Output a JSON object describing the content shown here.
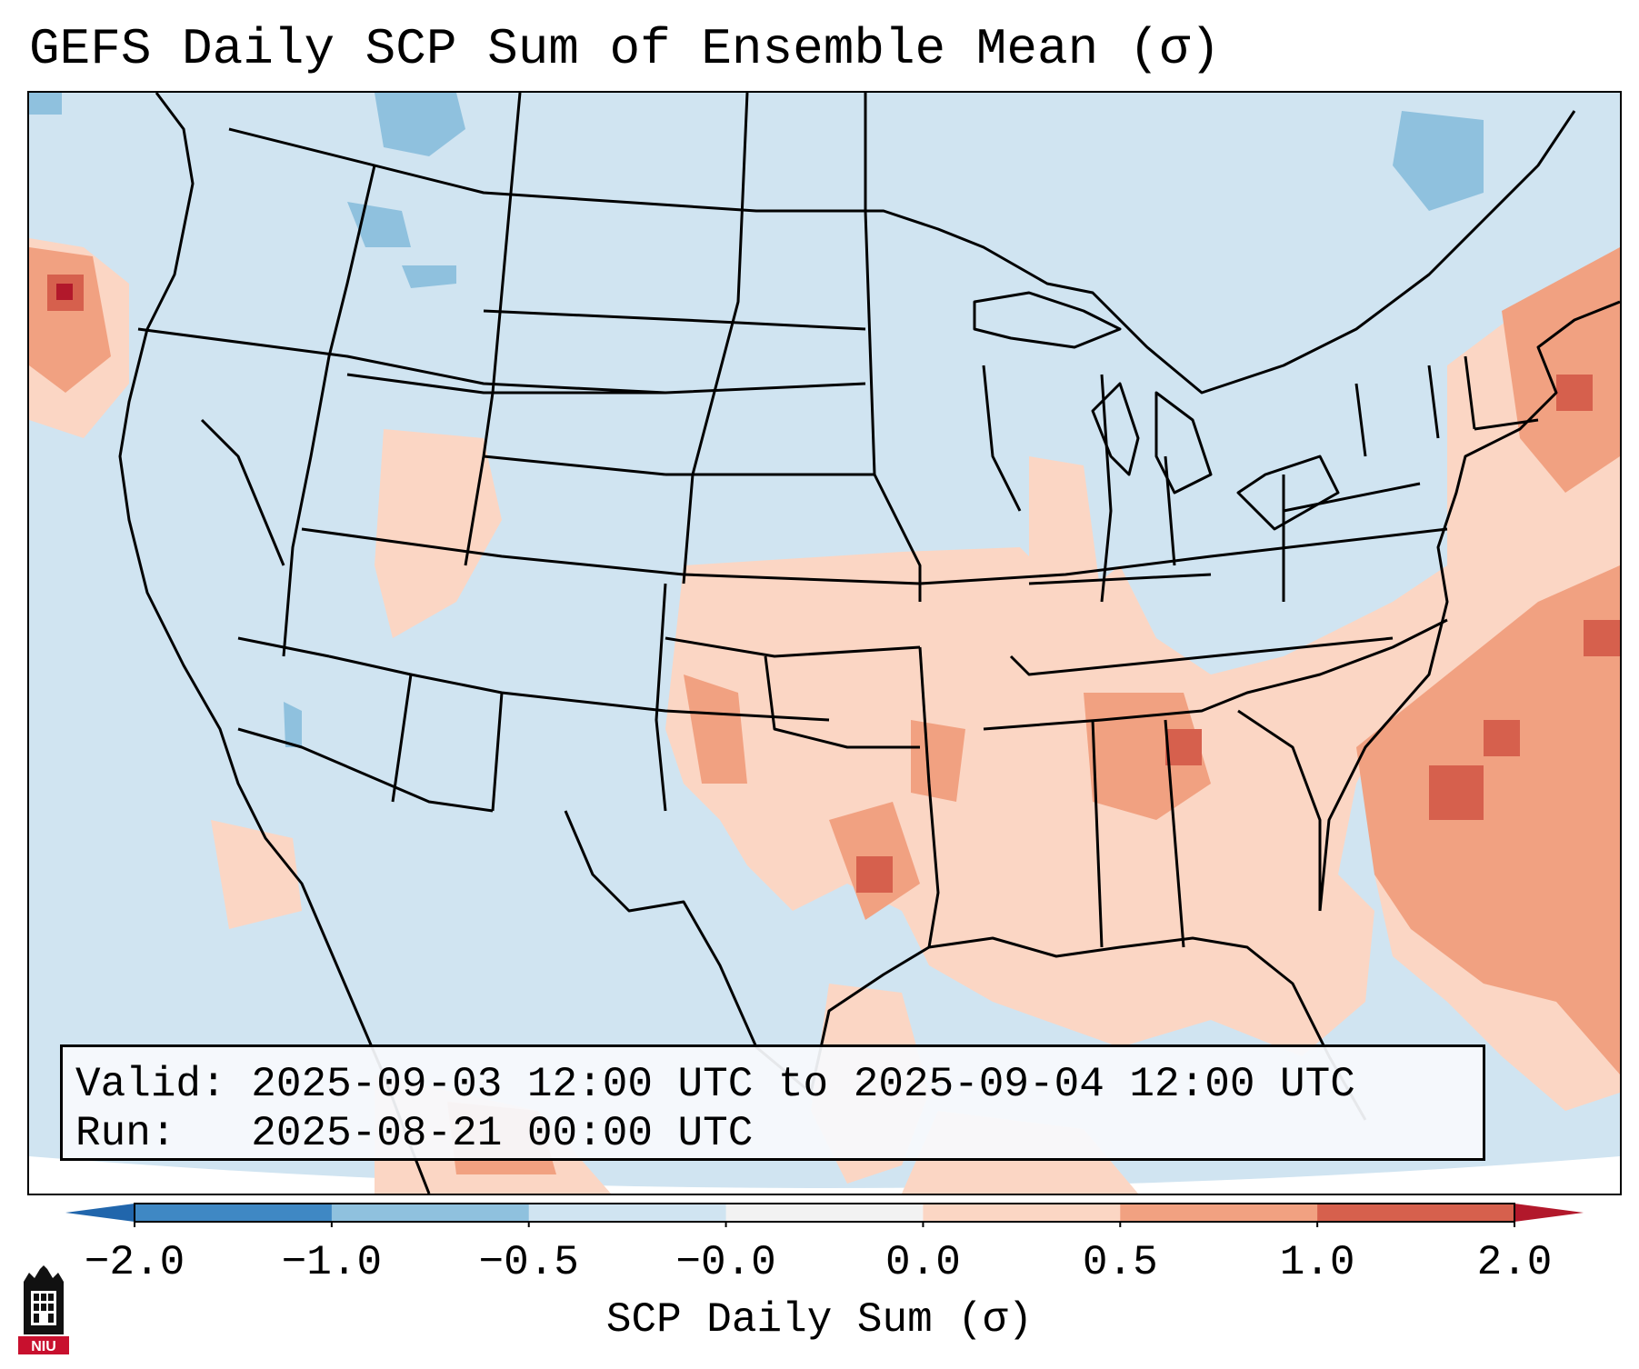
{
  "title": "GEFS Daily SCP Sum of Ensemble Mean (σ)",
  "map": {
    "description_region": "Contiguous United States",
    "colors": {
      "ocean_base": "#d0e4f1",
      "neg_2": "#3f88c4",
      "neg_1": "#8fc1de",
      "neg_05": "#d0e4f1",
      "neg_0": "#f2f2f2",
      "pos_0": "#fbd6c4",
      "pos_05": "#f1a181",
      "pos_1": "#d6604d",
      "pos_2": "#b2182b",
      "border": "#000000"
    }
  },
  "info": {
    "valid_label": "Valid:",
    "valid_value": "2025-09-03 12:00 UTC to 2025-09-04 12:00 UTC",
    "run_label": "Run:",
    "run_value": "2025-08-21 00:00 UTC"
  },
  "colorbar": {
    "ticks": [
      "−2.0",
      "−1.0",
      "−0.5",
      "−0.0",
      "0.0",
      "0.5",
      "1.0",
      "2.0"
    ],
    "label": "SCP Daily Sum (σ)",
    "segment_colors": [
      "#3f88c4",
      "#8fc1de",
      "#d0e4f1",
      "#f2f2f2",
      "#fbd6c4",
      "#f1a181",
      "#d6604d"
    ],
    "extend_low_color": "#2166ac",
    "extend_high_color": "#b2182b"
  },
  "logo": {
    "text": "NIU",
    "icon": "university-tower-icon"
  }
}
